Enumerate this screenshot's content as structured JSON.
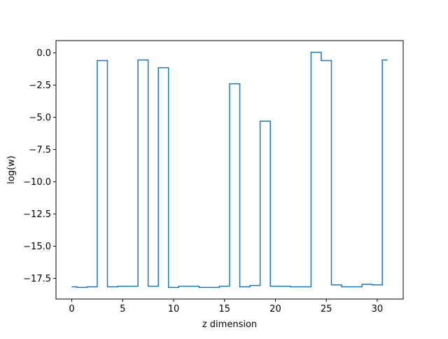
{
  "chart_data": {
    "type": "line",
    "drawstyle": "steps-mid",
    "title": "",
    "xlabel": "z dimension",
    "ylabel": "log(w)",
    "xlim": [
      -1.55,
      32.55
    ],
    "ylim": [
      -19.1,
      0.95
    ],
    "grid": false,
    "legend": "none",
    "line_color": "#1f77b4",
    "x_ticks": [
      0,
      5,
      10,
      15,
      20,
      25,
      30
    ],
    "y_ticks": [
      0.0,
      -2.5,
      -5.0,
      -7.5,
      -10.0,
      -12.5,
      -15.0,
      -17.5
    ],
    "x_tick_labels": [
      "0",
      "5",
      "10",
      "15",
      "20",
      "25",
      "30"
    ],
    "y_tick_labels": [
      "0.0",
      "−2.5",
      "−5.0",
      "−7.5",
      "−10.0",
      "−12.5",
      "−15.0",
      "−17.5"
    ],
    "series": [
      {
        "name": "",
        "x": [
          0,
          1,
          2,
          3,
          4,
          5,
          6,
          7,
          8,
          9,
          10,
          11,
          12,
          13,
          14,
          15,
          16,
          17,
          18,
          19,
          20,
          21,
          22,
          23,
          24,
          25,
          26,
          27,
          28,
          29,
          30,
          31
        ],
        "y": [
          -18.15,
          -18.2,
          -18.15,
          -0.6,
          -18.15,
          -18.1,
          -18.1,
          -0.55,
          -18.1,
          -1.15,
          -18.2,
          -18.1,
          -18.1,
          -18.2,
          -18.2,
          -18.1,
          -2.4,
          -18.15,
          -18.05,
          -5.3,
          -18.1,
          -18.1,
          -18.15,
          -18.15,
          0.05,
          -0.6,
          -18.0,
          -18.15,
          -18.15,
          -17.95,
          -18.0,
          -0.55
        ]
      }
    ]
  }
}
